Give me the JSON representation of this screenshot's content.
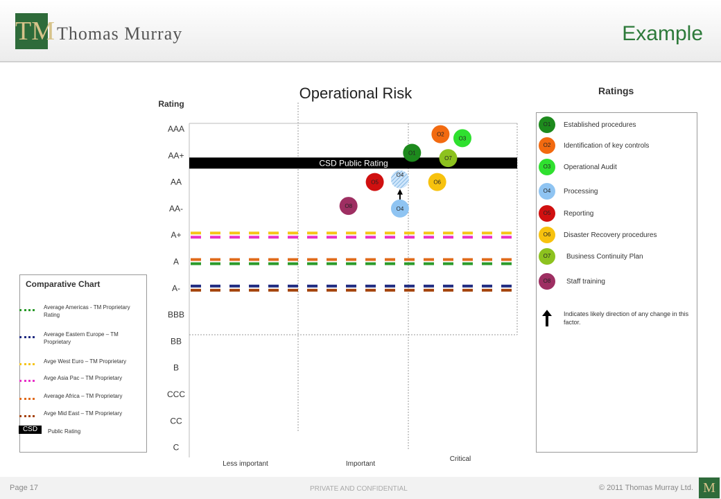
{
  "header": {
    "logo_letters": "TM",
    "company": "Thomas Murray",
    "title": "Example"
  },
  "footer": {
    "page": "Page 17",
    "confidential": "PRIVATE AND CONFIDENTIAL",
    "copyright": "© 2011 Thomas Murray Ltd.",
    "logo_letters": "M"
  },
  "comparative": {
    "title": "Comparative Chart",
    "items": [
      {
        "label": "Average Americas - TM Proprietary Rating",
        "color": "#2a9a2a"
      },
      {
        "label": "Average Eastern Europe – TM Proprietary",
        "color": "#1f2a80"
      },
      {
        "label": "Avge West Euro – TM Proprietary",
        "color": "#f5c518"
      },
      {
        "label": "Avge Asia Pac – TM Proprietary",
        "color": "#e830c8"
      },
      {
        "label": "Average Africa – TM Proprietary",
        "color": "#e06a1a"
      },
      {
        "label": "Avge Mid East – TM Proprietary",
        "color": "#a4420a"
      }
    ],
    "csd_tag": "CSD",
    "csd_label": "Public Rating"
  },
  "ratings_legend": {
    "title": "Ratings",
    "items": [
      {
        "code": "O1",
        "label": "Established procedures",
        "color": "#1d8a1d"
      },
      {
        "code": "O2",
        "label": "Identification of key controls",
        "color": "#f26a10"
      },
      {
        "code": "O3",
        "label": "Operational Audit",
        "color": "#2fe02f"
      },
      {
        "code": "O4",
        "label": "Processing",
        "color": "#8fc4f2"
      },
      {
        "code": "O5",
        "label": "Reporting",
        "color": "#d01010"
      },
      {
        "code": "O6",
        "label": "Disaster Recovery procedures",
        "color": "#f7c20e"
      },
      {
        "code": "O7",
        "label": "Business Continuity Plan",
        "color": "#8dc21f"
      },
      {
        "code": "O8",
        "label": "Staff training",
        "color": "#9e2f62"
      }
    ],
    "arrow_note": "Indicates likely direction of any change in this factor."
  },
  "chart_data": {
    "type": "scatter",
    "title": "Operational Risk",
    "ylabel": "Rating",
    "y_categories": [
      "AAA",
      "AA+",
      "AA",
      "AA-",
      "A+",
      "A",
      "A-",
      "BBB",
      "BB",
      "B",
      "CCC",
      "CC",
      "C"
    ],
    "x_categories": [
      "Less important",
      "Important",
      "Critical"
    ],
    "csd_public_rating": {
      "label": "CSD Public Rating",
      "rating": "AA+"
    },
    "comparative_lines": [
      {
        "name": "Avge West Euro",
        "rating": "A+",
        "color": "#f5c518",
        "offset": -1
      },
      {
        "name": "Avge Asia Pac",
        "rating": "A+",
        "color": "#e830c8",
        "offset": 1
      },
      {
        "name": "Average Africa",
        "rating": "A",
        "color": "#e06a1a",
        "offset": -1
      },
      {
        "name": "Average Americas",
        "rating": "A",
        "color": "#2a9a2a",
        "offset": 1
      },
      {
        "name": "Average Eastern Europe",
        "rating": "A-",
        "color": "#1f2a80",
        "offset": -1
      },
      {
        "name": "Avge Mid East",
        "rating": "A-",
        "color": "#a4420a",
        "offset": 1
      }
    ],
    "points": [
      {
        "code": "O1",
        "x": 1.04,
        "y": 0.9,
        "color": "#1d8a1d"
      },
      {
        "code": "O2",
        "x": 1.3,
        "y": 0.2,
        "color": "#f26a10"
      },
      {
        "code": "O3",
        "x": 1.5,
        "y": 0.35,
        "color": "#2fe02f"
      },
      {
        "code": "O7",
        "x": 1.37,
        "y": 1.1,
        "color": "#8dc21f"
      },
      {
        "code": "O5",
        "x": 0.7,
        "y": 2.0,
        "color": "#d01010"
      },
      {
        "code": "O4",
        "x": 0.93,
        "y": 1.9,
        "color": "#8fc4f2",
        "hatched": true
      },
      {
        "code": "O6",
        "x": 1.27,
        "y": 2.0,
        "color": "#f7c20e"
      },
      {
        "code": "O8",
        "x": 0.46,
        "y": 2.9,
        "color": "#9e2f62"
      },
      {
        "code": "O4",
        "x": 0.93,
        "y": 3.0,
        "color": "#8fc4f2"
      }
    ],
    "arrow": {
      "from_y": 3.0,
      "to_y": 1.9,
      "x": 0.93
    }
  }
}
